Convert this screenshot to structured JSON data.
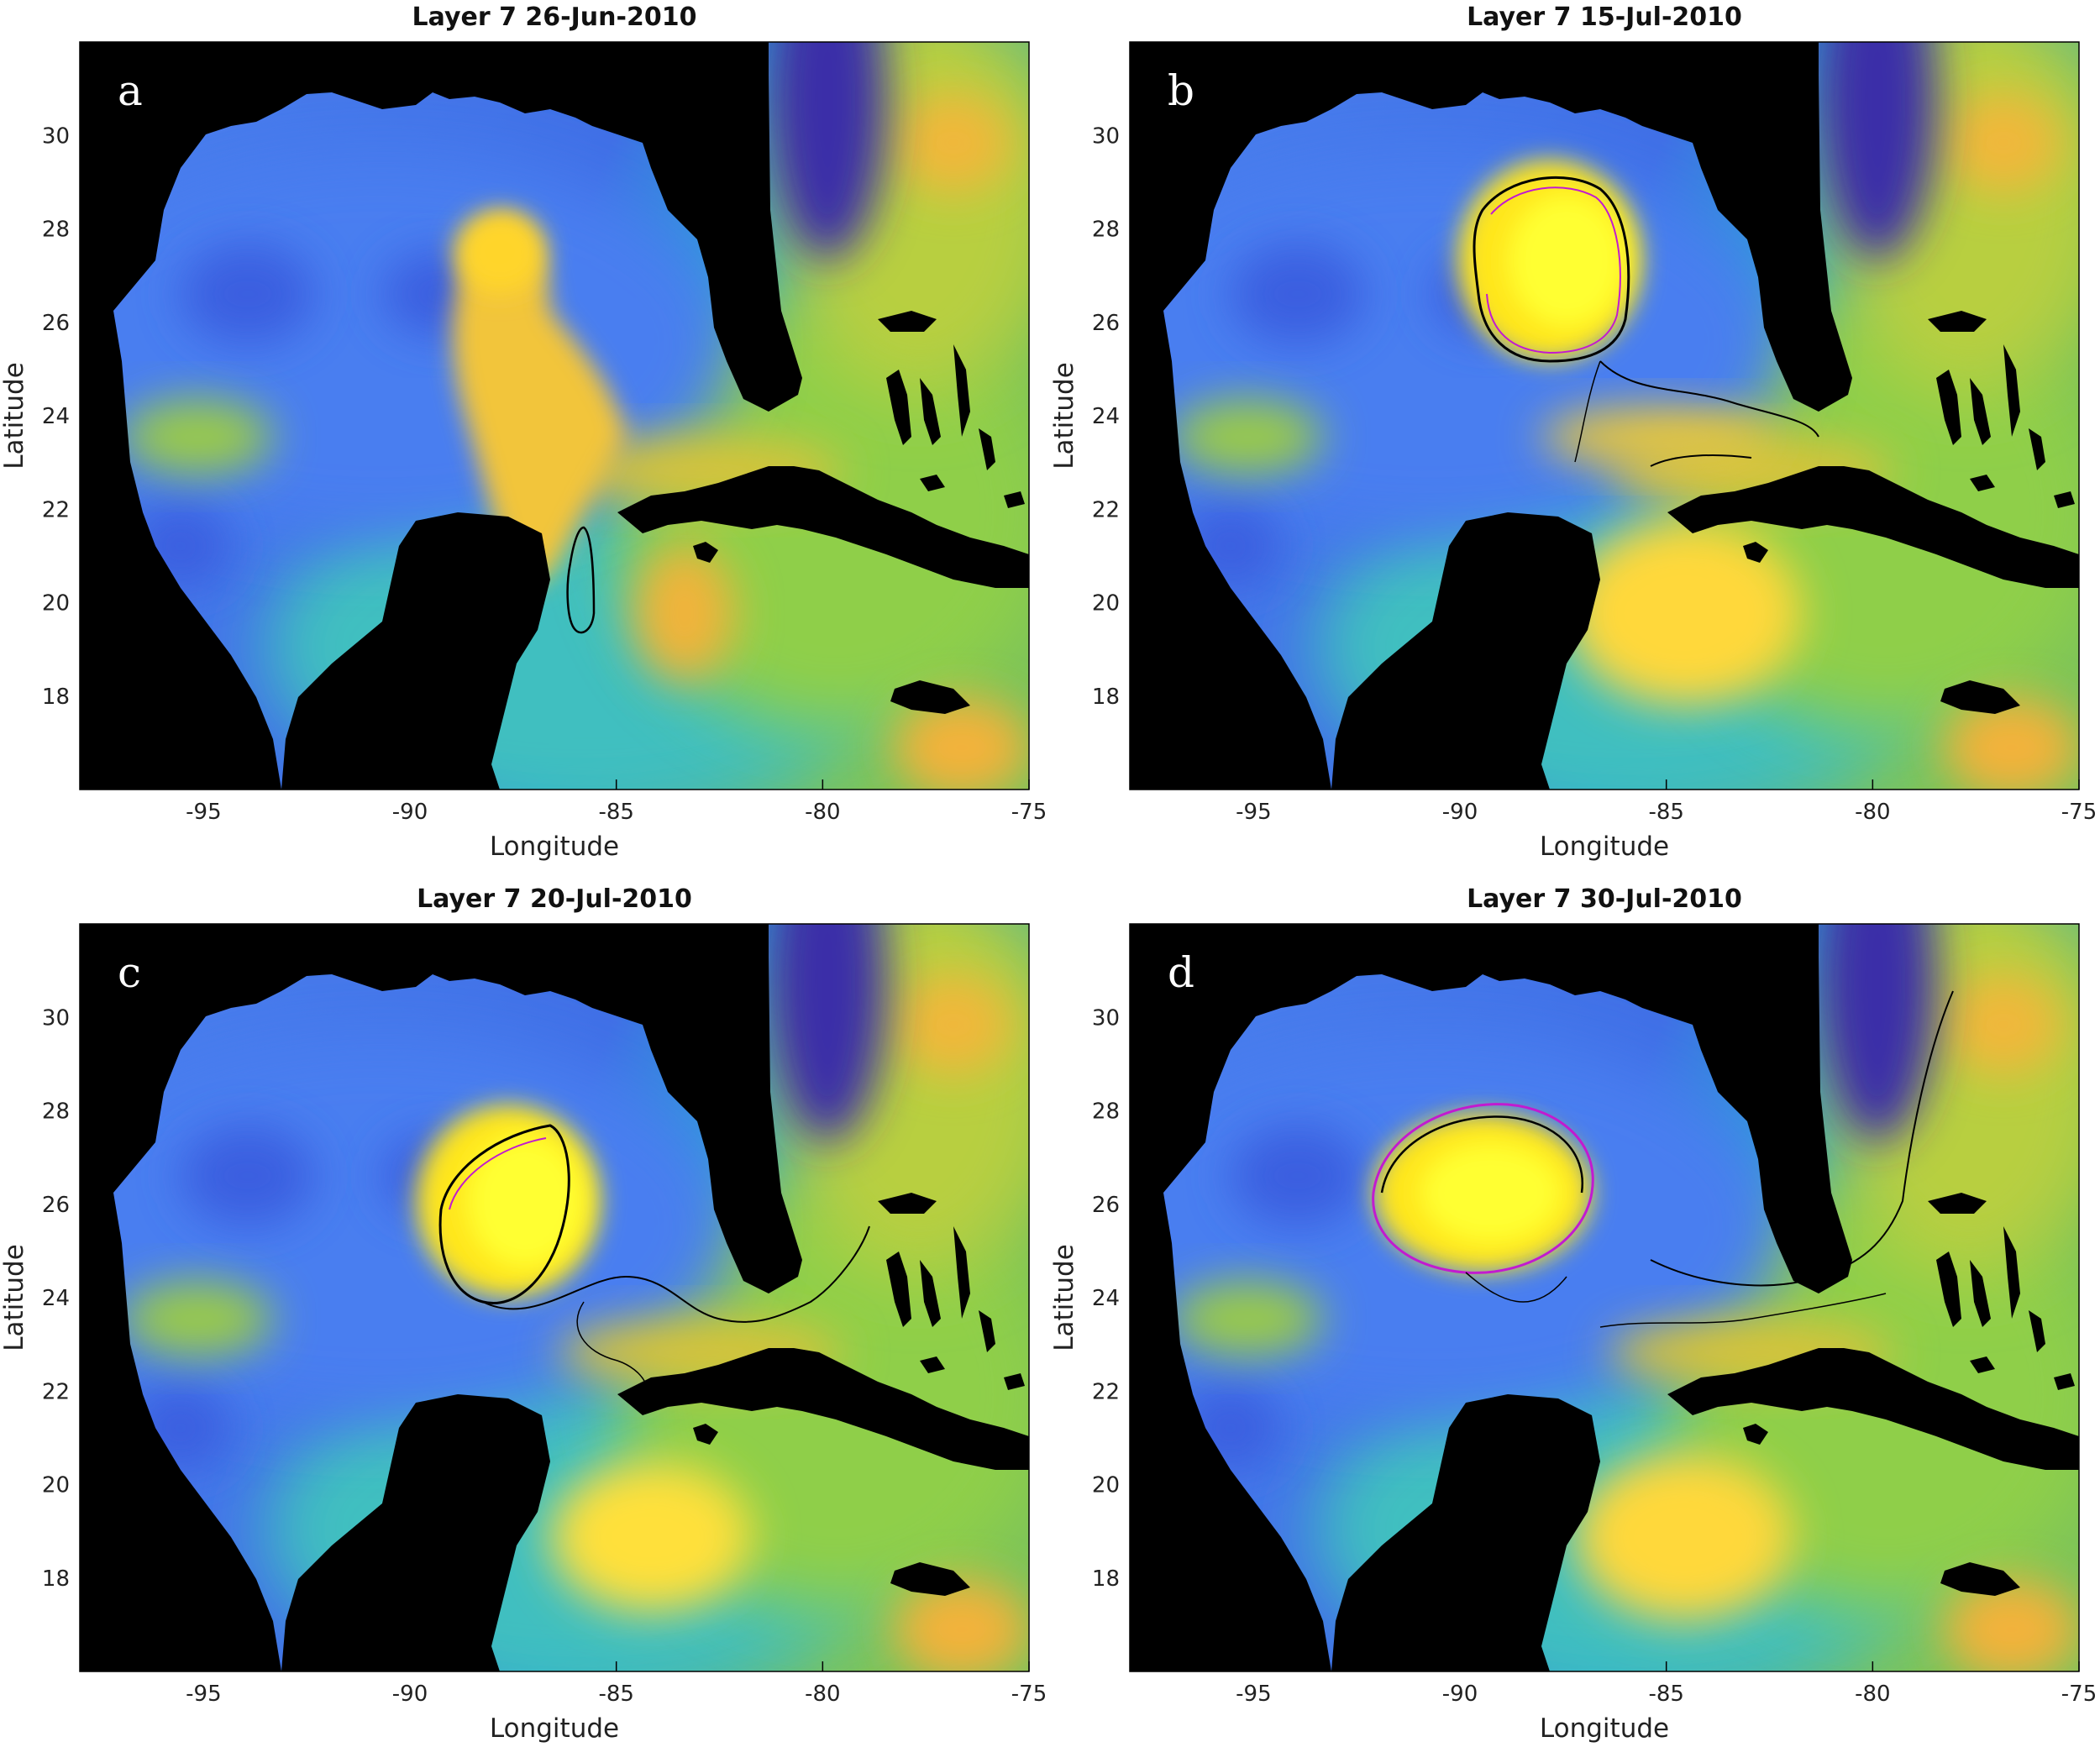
{
  "figure": {
    "panels": [
      {
        "id": "a",
        "label": "a",
        "title": "Layer 7 26-Jun-2010",
        "xlabel": "Longitude",
        "ylabel": "Latitude"
      },
      {
        "id": "b",
        "label": "b",
        "title": "Layer 7 15-Jul-2010",
        "xlabel": "Longitude",
        "ylabel": "Latitude"
      },
      {
        "id": "c",
        "label": "c",
        "title": "Layer 7 20-Jul-2010",
        "xlabel": "Longitude",
        "ylabel": "Latitude"
      },
      {
        "id": "d",
        "label": "d",
        "title": "Layer 7 30-Jul-2010",
        "xlabel": "Longitude",
        "ylabel": "Latitude"
      }
    ],
    "x_ticks": [
      "-95",
      "-90",
      "-85",
      "-80",
      "-75"
    ],
    "y_ticks": [
      "18",
      "20",
      "22",
      "24",
      "26",
      "28",
      "30"
    ],
    "xlim": [
      -98,
      -75
    ],
    "ylim": [
      16,
      32
    ],
    "colors": {
      "land": "#000000",
      "low": "#3b4fd6",
      "mid": "#1fb3c9",
      "high": "#ffe81a",
      "contour": "#000000",
      "contour_accent": "#c21ad0"
    }
  }
}
